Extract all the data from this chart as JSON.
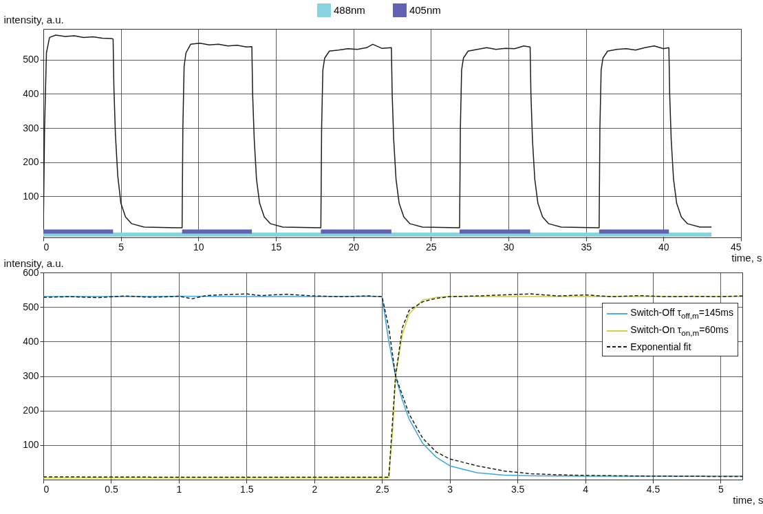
{
  "chart_data": [
    {
      "type": "line",
      "xlabel": "time, s",
      "ylabel": "intensity, a.u.",
      "xlim": [
        0,
        45
      ],
      "ylim": [
        -20,
        590
      ],
      "xticks": [
        0,
        5,
        10,
        15,
        20,
        25,
        30,
        35,
        40,
        45
      ],
      "yticks": [
        100,
        200,
        300,
        400,
        500
      ],
      "grid": true,
      "legend": "top",
      "line_style": "solid",
      "x": [
        0,
        0.08,
        0.2,
        0.4,
        0.8,
        1.4,
        2.0,
        2.6,
        3.2,
        3.8,
        4.4,
        4.5,
        4.55,
        4.65,
        4.8,
        5.0,
        5.3,
        5.7,
        6.5,
        8.9,
        8.95,
        9.0,
        9.08,
        9.2,
        9.5,
        10.1,
        10.7,
        11.3,
        11.9,
        12.5,
        13.1,
        13.45,
        13.5,
        13.6,
        13.75,
        13.95,
        14.25,
        14.65,
        15.45,
        17.85,
        17.9,
        17.95,
        18.03,
        18.15,
        18.45,
        19.05,
        19.65,
        20.25,
        20.85,
        21.25,
        21.85,
        22.45,
        22.5,
        22.6,
        22.75,
        22.95,
        23.25,
        23.65,
        24.45,
        26.8,
        26.85,
        26.9,
        26.98,
        27.1,
        27.4,
        28.0,
        28.6,
        29.2,
        29.8,
        30.4,
        31.0,
        31.4,
        31.45,
        31.55,
        31.7,
        31.9,
        32.2,
        32.6,
        33.4,
        35.8,
        35.85,
        35.9,
        35.98,
        36.1,
        36.4,
        37.0,
        37.6,
        38.2,
        38.8,
        39.4,
        40.0,
        40.35,
        40.4,
        40.5,
        40.65,
        40.85,
        41.15,
        41.55,
        42.35,
        43.1
      ],
      "series": [
        {
          "name": "488nm",
          "color": "#87d4e0",
          "x": [
            0,
            43.1
          ],
          "values": [
            -12,
            -12
          ]
        },
        {
          "name": "405nm",
          "color": "#6262b2",
          "x": [
            0,
            4.5,
            4.6,
            8.95,
            13.45,
            13.5,
            17.9,
            22.45,
            22.5,
            26.85,
            31.4,
            31.5,
            35.85,
            40.35
          ],
          "values": [
            -3,
            -3,
            null,
            -3,
            -3,
            null,
            -3,
            -3,
            null,
            -3,
            -3,
            null,
            -3,
            -3
          ]
        },
        {
          "color": "#1e1e1e",
          "values": [
            5,
            300,
            520,
            565,
            572,
            568,
            570,
            565,
            567,
            563,
            562,
            560,
            420,
            280,
            160,
            80,
            40,
            20,
            10,
            8,
            8,
            300,
            480,
            520,
            545,
            548,
            543,
            545,
            540,
            542,
            537,
            538,
            400,
            270,
            150,
            80,
            40,
            20,
            10,
            8,
            8,
            300,
            470,
            505,
            525,
            528,
            532,
            530,
            535,
            545,
            533,
            535,
            400,
            265,
            150,
            80,
            40,
            20,
            10,
            8,
            8,
            300,
            470,
            505,
            525,
            530,
            535,
            530,
            533,
            532,
            540,
            537,
            400,
            265,
            150,
            80,
            40,
            20,
            10,
            8,
            8,
            300,
            470,
            505,
            525,
            530,
            532,
            528,
            535,
            540,
            532,
            535,
            400,
            265,
            150,
            80,
            40,
            20,
            10,
            10
          ]
        }
      ]
    },
    {
      "type": "line",
      "xlabel": "time, s",
      "ylabel": "intensity, a.u.",
      "xlim": [
        0,
        5.16
      ],
      "ylim": [
        0,
        600
      ],
      "xticks": [
        0,
        0.5,
        1,
        1.5,
        2,
        2.5,
        3,
        3.5,
        4,
        4.5,
        5
      ],
      "yticks": [
        100,
        200,
        300,
        400,
        500,
        600
      ],
      "grid": true,
      "legend": "right",
      "series": [
        {
          "name": "Switch-Off τ$_{off,m}$=145ms",
          "color": "#3aa6de",
          "line_style": "solid",
          "x": [
            0,
            0.5,
            1,
            1.5,
            2,
            2.4,
            2.5,
            2.55,
            2.6,
            2.65,
            2.7,
            2.8,
            2.9,
            3.0,
            3.2,
            3.4,
            3.6,
            4,
            4.5,
            5,
            5.16
          ],
          "values": [
            530,
            530,
            531,
            530,
            530,
            531,
            530,
            400,
            300,
            230,
            175,
            105,
            65,
            40,
            20,
            13,
            11,
            10,
            10,
            10,
            10
          ]
        },
        {
          "name": "Switch-On τ$_{on,m}$=60ms",
          "color": "#c8d02c",
          "line_style": "solid",
          "x": [
            0,
            1,
            2,
            2.5,
            2.55,
            2.58,
            2.6,
            2.65,
            2.7,
            2.8,
            2.9,
            3.0,
            3.5,
            4,
            4.5,
            5,
            5.16
          ],
          "values": [
            5,
            5,
            5,
            5,
            5,
            150,
            300,
            420,
            480,
            520,
            528,
            530,
            530,
            530,
            530,
            530,
            530
          ]
        },
        {
          "name": "Exponential fit",
          "color": "#1e1e1e",
          "line_style": "dashed",
          "x": [
            0,
            0.2,
            0.4,
            0.6,
            0.8,
            1.0,
            1.1,
            1.2,
            1.3,
            1.5,
            1.6,
            1.8,
            2,
            2.2,
            2.4,
            2.5,
            2.55,
            2.6,
            2.7,
            2.8,
            2.9,
            3,
            3.2,
            3.4,
            3.6,
            3.8,
            4,
            4.5,
            5,
            5.16
          ],
          "values": [
            528,
            530,
            527,
            532,
            528,
            531,
            524,
            533,
            535,
            538,
            533,
            537,
            532,
            530,
            532,
            530,
            440,
            300,
            190,
            120,
            80,
            60,
            40,
            25,
            17,
            14,
            12,
            10,
            9,
            9
          ]
        },
        {
          "color": "#1e1e1e",
          "line_style": "dashed",
          "x": [
            0,
            1,
            2,
            2.5,
            2.55,
            2.6,
            2.65,
            2.7,
            2.8,
            2.9,
            3,
            3.2,
            3.4,
            3.6,
            3.8,
            4,
            4.2,
            4.4,
            4.6,
            4.8,
            5,
            5.16
          ],
          "values": [
            8,
            7,
            7,
            7,
            7,
            300,
            440,
            490,
            515,
            525,
            530,
            532,
            535,
            538,
            532,
            535,
            530,
            533,
            530,
            531,
            530,
            532
          ]
        }
      ]
    }
  ]
}
